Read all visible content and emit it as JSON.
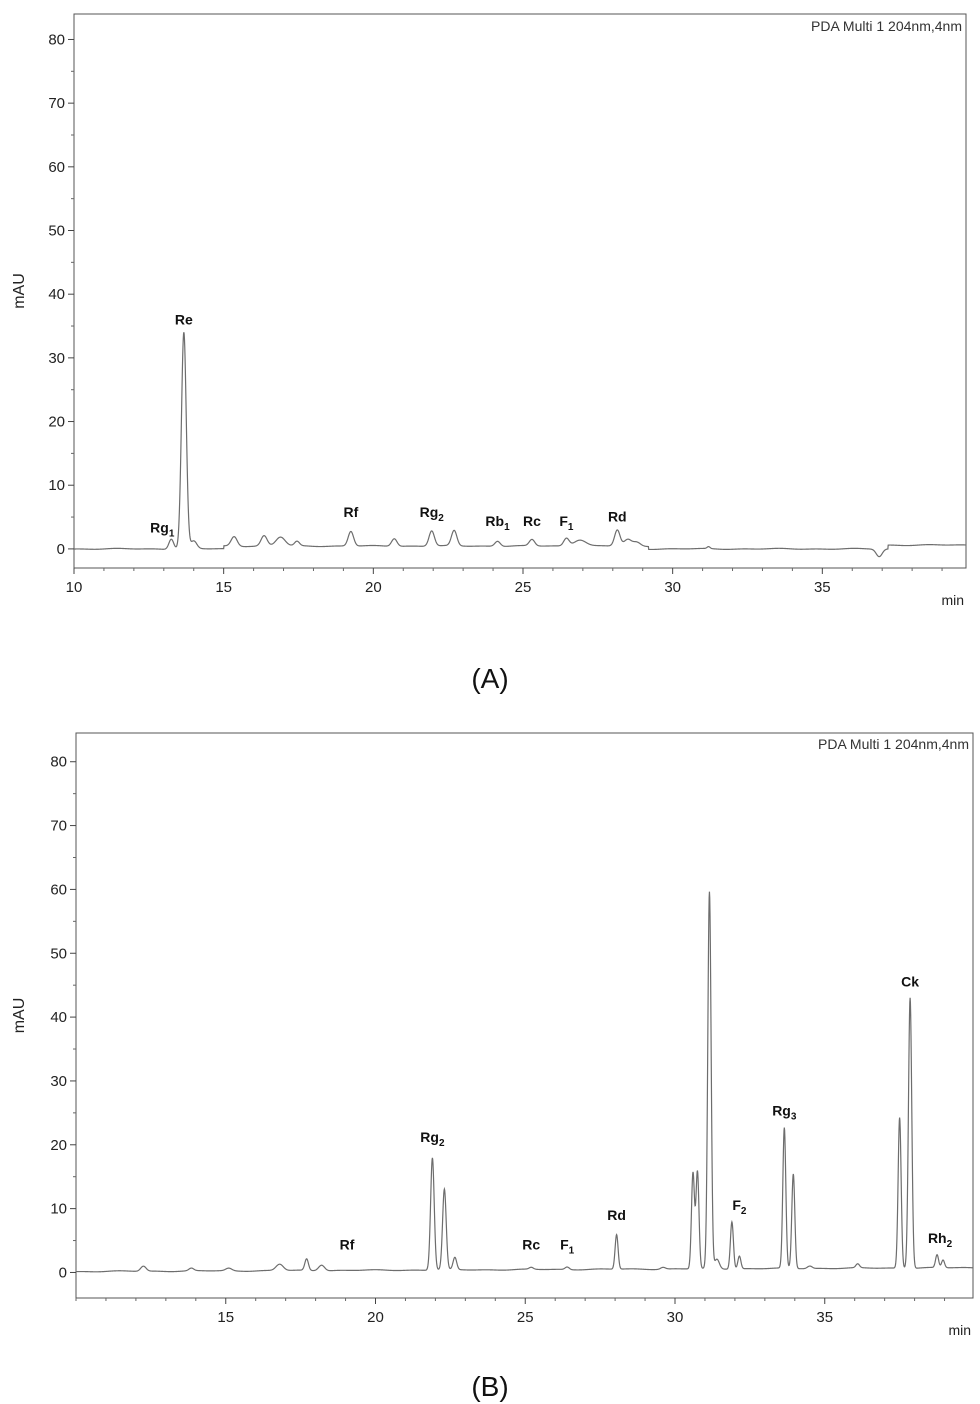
{
  "chart_data": [
    {
      "type": "line",
      "panel_label": "(A)",
      "info_text": "PDA Multi 1 204nm,4nm",
      "ylabel": "mAU",
      "xlabel": "min",
      "xlim": [
        10,
        39.8
      ],
      "ylim": [
        -3,
        84
      ],
      "xticks": [
        10,
        15,
        20,
        25,
        30,
        35
      ],
      "yticks": [
        0,
        10,
        20,
        30,
        40,
        50,
        60,
        70,
        80
      ],
      "grid": false,
      "peaks": [
        {
          "x": 13.25,
          "y": 1.6,
          "w": 0.08
        },
        {
          "x": 13.67,
          "y": 34.0,
          "w": 0.08
        },
        {
          "x": 14.0,
          "y": 1.2,
          "w": 0.1
        },
        {
          "x": 15.35,
          "y": 1.5,
          "w": 0.1
        },
        {
          "x": 16.35,
          "y": 1.6,
          "w": 0.1
        },
        {
          "x": 16.9,
          "y": 1.4,
          "w": 0.15
        },
        {
          "x": 17.45,
          "y": 0.7,
          "w": 0.08
        },
        {
          "x": 19.25,
          "y": 2.3,
          "w": 0.09
        },
        {
          "x": 20.7,
          "y": 1.2,
          "w": 0.09
        },
        {
          "x": 21.95,
          "y": 2.4,
          "w": 0.09
        },
        {
          "x": 22.7,
          "y": 2.4,
          "w": 0.09
        },
        {
          "x": 24.15,
          "y": 0.8,
          "w": 0.09
        },
        {
          "x": 25.3,
          "y": 1.0,
          "w": 0.09
        },
        {
          "x": 26.45,
          "y": 1.2,
          "w": 0.09
        },
        {
          "x": 26.9,
          "y": 1.0,
          "w": 0.2
        },
        {
          "x": 28.15,
          "y": 2.5,
          "w": 0.09
        },
        {
          "x": 28.5,
          "y": 1.0,
          "w": 0.12
        },
        {
          "x": 28.8,
          "y": 0.6,
          "w": 0.12
        },
        {
          "x": 31.2,
          "y": 0.3,
          "w": 0.05
        },
        {
          "x": 36.9,
          "y": -1.2,
          "w": 0.1
        }
      ],
      "annotations": [
        {
          "main": "Rg",
          "sub": "1",
          "x": 12.95,
          "y": 2.6
        },
        {
          "main": "Re",
          "sub": "",
          "x": 13.67,
          "y": 35.2
        },
        {
          "main": "Rf",
          "sub": "",
          "x": 19.25,
          "y": 5.0
        },
        {
          "main": "Rg",
          "sub": "2",
          "x": 21.95,
          "y": 5.0
        },
        {
          "main": "Rb",
          "sub": "1",
          "x": 24.15,
          "y": 3.6
        },
        {
          "main": "Rc",
          "sub": "",
          "x": 25.3,
          "y": 3.6
        },
        {
          "main": "F",
          "sub": "1",
          "x": 26.45,
          "y": 3.6
        },
        {
          "main": "Rd",
          "sub": "",
          "x": 28.15,
          "y": 4.3
        }
      ]
    },
    {
      "type": "line",
      "panel_label": "(B)",
      "info_text": "PDA Multi 1 204nm,4nm",
      "ylabel": "mAU",
      "xlabel": "min",
      "xlim": [
        10,
        39.95
      ],
      "ylim": [
        -4,
        84.5
      ],
      "xticks": [
        15,
        20,
        25,
        30,
        35
      ],
      "yticks": [
        0,
        10,
        20,
        30,
        40,
        50,
        60,
        70,
        80
      ],
      "grid": false,
      "peaks": [
        {
          "x": 12.25,
          "y": 0.8,
          "w": 0.09
        },
        {
          "x": 13.85,
          "y": 0.4,
          "w": 0.08
        },
        {
          "x": 15.1,
          "y": 0.4,
          "w": 0.1
        },
        {
          "x": 16.8,
          "y": 1.0,
          "w": 0.12
        },
        {
          "x": 17.7,
          "y": 1.8,
          "w": 0.06
        },
        {
          "x": 18.2,
          "y": 0.9,
          "w": 0.1
        },
        {
          "x": 21.9,
          "y": 17.6,
          "w": 0.06
        },
        {
          "x": 22.3,
          "y": 12.6,
          "w": 0.06
        },
        {
          "x": 22.65,
          "y": 1.9,
          "w": 0.06
        },
        {
          "x": 25.2,
          "y": 0.3,
          "w": 0.07
        },
        {
          "x": 26.4,
          "y": 0.4,
          "w": 0.07
        },
        {
          "x": 28.05,
          "y": 5.4,
          "w": 0.05
        },
        {
          "x": 29.6,
          "y": 0.3,
          "w": 0.08
        },
        {
          "x": 30.6,
          "y": 15.0,
          "w": 0.05
        },
        {
          "x": 30.75,
          "y": 15.2,
          "w": 0.05
        },
        {
          "x": 31.15,
          "y": 59.0,
          "w": 0.055
        },
        {
          "x": 31.4,
          "y": 1.5,
          "w": 0.08
        },
        {
          "x": 31.9,
          "y": 7.4,
          "w": 0.05
        },
        {
          "x": 32.15,
          "y": 2.0,
          "w": 0.05
        },
        {
          "x": 33.65,
          "y": 22.0,
          "w": 0.05
        },
        {
          "x": 33.95,
          "y": 14.8,
          "w": 0.05
        },
        {
          "x": 34.5,
          "y": 0.4,
          "w": 0.08
        },
        {
          "x": 36.1,
          "y": 0.6,
          "w": 0.06
        },
        {
          "x": 37.5,
          "y": 23.6,
          "w": 0.05
        },
        {
          "x": 37.85,
          "y": 42.4,
          "w": 0.055
        },
        {
          "x": 38.75,
          "y": 2.0,
          "w": 0.05
        },
        {
          "x": 38.95,
          "y": 1.2,
          "w": 0.05
        }
      ],
      "annotations": [
        {
          "main": "Rf",
          "sub": "",
          "x": 19.05,
          "y": 3.6
        },
        {
          "main": "Rg",
          "sub": "2",
          "x": 21.9,
          "y": 20.4
        },
        {
          "main": "Rc",
          "sub": "",
          "x": 25.2,
          "y": 3.6
        },
        {
          "main": "F",
          "sub": "1",
          "x": 26.4,
          "y": 3.6
        },
        {
          "main": "Rd",
          "sub": "",
          "x": 28.05,
          "y": 8.2
        },
        {
          "main": "F",
          "sub": "2",
          "x": 32.15,
          "y": 9.8
        },
        {
          "main": "Rg",
          "sub": "3",
          "x": 33.65,
          "y": 24.6
        },
        {
          "main": "Ck",
          "sub": "",
          "x": 37.85,
          "y": 44.8
        },
        {
          "main": "Rh",
          "sub": "2",
          "x": 38.85,
          "y": 4.6
        }
      ]
    }
  ]
}
